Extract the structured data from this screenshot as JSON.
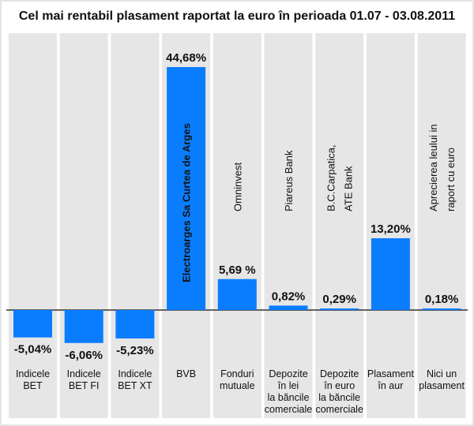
{
  "chart_data": {
    "type": "bar",
    "title": "Cel mai rentabil plasament raportat la euro în perioada 01.07 - 03.08.2011",
    "categories": [
      [
        "Indicele",
        "BET"
      ],
      [
        "Indicele",
        "BET FI"
      ],
      [
        "Indicele",
        "BET XT"
      ],
      [
        "BVB"
      ],
      [
        "Fonduri",
        "mutuale"
      ],
      [
        "Depozite",
        "în lei",
        "la băncile",
        "comerciale"
      ],
      [
        "Depozite",
        "în euro",
        "la băncile",
        "comerciale"
      ],
      [
        "Plasament",
        "în aur"
      ],
      [
        "Nici un",
        "plasament"
      ]
    ],
    "values": [
      -5.04,
      -6.06,
      -5.23,
      44.68,
      5.69,
      0.82,
      0.29,
      13.2,
      0.18
    ],
    "value_labels": [
      "-5,04%",
      "-6,06%",
      "-5,23%",
      "44,68%",
      "5,69 %",
      "0,82%",
      "0,29%",
      "13,20%",
      "0,18%"
    ],
    "bar_notes": [
      [],
      [],
      [],
      [
        "Electroarges Sa Curtea de Arges"
      ],
      [
        "Omninvest"
      ],
      [
        "Piareus Bank"
      ],
      [
        "B.C.Carpatica,",
        "ATE Bank"
      ],
      [],
      [
        "Aprecierea leului in",
        "raport cu euro"
      ]
    ],
    "ylim": [
      -6.06,
      44.68
    ],
    "colors": {
      "bar": "#0a7dff",
      "column_bg": "#e6e6e6",
      "axis": "#333333"
    }
  }
}
